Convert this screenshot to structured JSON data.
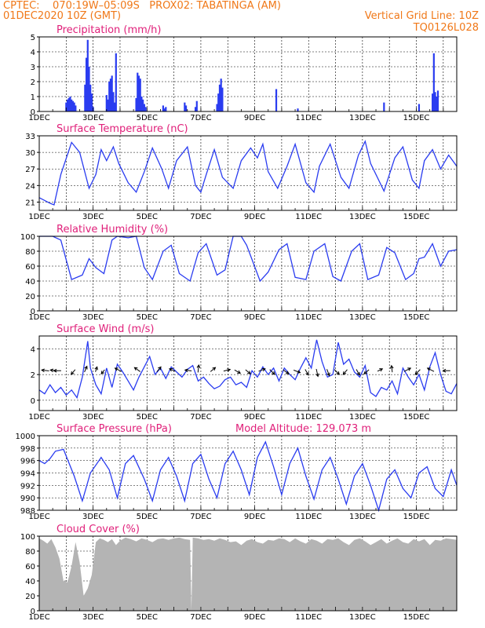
{
  "header": {
    "line1_left": "CPTEC:    070:19W–05:09S   PROX02: TABATINGA (AM)",
    "line2_left": "01DEC2020 10Z (GMT)",
    "line2_right": "Vertical Grid Line: 10Z",
    "line3_right": "TQ0126L028"
  },
  "colors": {
    "header": "#f07818",
    "title": "#e0207a",
    "series": "#2a3cf0",
    "cloud": "#b4b4b4",
    "wind_arrow": "#000000"
  },
  "chart_data": [
    {
      "id": "precip",
      "type": "bar",
      "title": "Precipitation (mm/h)",
      "ylim": [
        0,
        5
      ],
      "yticks": [
        "0",
        "1",
        "2",
        "3",
        "4",
        "5"
      ],
      "xlim": [
        1,
        16.5
      ],
      "xtick_labels": [
        "1DEC",
        "3DEC",
        "5DEC",
        "7DEC",
        "9DEC",
        "11DEC",
        "13DEC",
        "15DEC"
      ],
      "x": [
        2.0,
        2.05,
        2.1,
        2.15,
        2.2,
        2.25,
        2.3,
        2.35,
        2.7,
        2.75,
        2.8,
        2.85,
        2.9,
        2.95,
        3.0,
        3.5,
        3.55,
        3.6,
        3.65,
        3.7,
        3.75,
        3.8,
        3.85,
        4.6,
        4.65,
        4.7,
        4.75,
        4.8,
        4.85,
        4.9,
        4.95,
        5.6,
        5.65,
        5.7,
        6.4,
        6.45,
        6.8,
        6.85,
        7.6,
        7.65,
        7.7,
        7.75,
        7.8,
        9.8,
        10.6,
        13.8,
        15.1,
        15.6,
        15.65,
        15.7,
        15.75,
        15.8
      ],
      "values": [
        0.6,
        0.8,
        0.9,
        1.0,
        0.8,
        0.7,
        0.6,
        0.4,
        1.8,
        3.6,
        4.8,
        3.0,
        1.8,
        1.2,
        0.3,
        1.1,
        0.8,
        2.0,
        2.2,
        2.4,
        1.3,
        0.6,
        3.9,
        0.9,
        2.6,
        2.4,
        2.2,
        1.0,
        0.8,
        0.5,
        0.3,
        0.4,
        0.2,
        0.3,
        0.6,
        0.4,
        0.3,
        0.7,
        0.5,
        1.2,
        1.8,
        2.2,
        1.6,
        1.5,
        0.2,
        0.6,
        0.5,
        1.2,
        3.9,
        1.3,
        1.0,
        1.4
      ]
    },
    {
      "id": "temp",
      "type": "line",
      "title": "Surface Temperature (nC)",
      "ylim": [
        19.5,
        33
      ],
      "yticks": [
        "21",
        "24",
        "27",
        "30",
        "33"
      ],
      "xlim": [
        1,
        16.5
      ],
      "xtick_labels": [
        "1DEC",
        "3DEC",
        "5DEC",
        "7DEC",
        "9DEC",
        "11DEC",
        "13DEC",
        "15DEC"
      ],
      "x": [
        1.0,
        1.4,
        1.55,
        1.8,
        2.2,
        2.5,
        2.85,
        3.1,
        3.3,
        3.5,
        3.75,
        3.95,
        4.3,
        4.6,
        4.9,
        5.2,
        5.55,
        5.8,
        6.1,
        6.5,
        6.8,
        7.0,
        7.2,
        7.5,
        7.8,
        8.2,
        8.5,
        8.85,
        9.1,
        9.3,
        9.5,
        9.85,
        10.2,
        10.5,
        10.9,
        11.2,
        11.4,
        11.8,
        12.2,
        12.5,
        12.85,
        13.1,
        13.3,
        13.8,
        14.2,
        14.5,
        14.85,
        15.1,
        15.3,
        15.6,
        15.9,
        16.2,
        16.5
      ],
      "y": [
        21.8,
        20.8,
        20.5,
        26.0,
        31.8,
        30.0,
        23.5,
        26.0,
        30.5,
        28.5,
        31.0,
        28.0,
        24.5,
        22.8,
        26.5,
        30.8,
        27.0,
        23.5,
        28.5,
        31.0,
        24.0,
        22.8,
        26.0,
        30.5,
        25.5,
        23.5,
        28.5,
        30.8,
        29.0,
        31.5,
        26.5,
        23.5,
        27.5,
        31.5,
        24.5,
        22.8,
        27.5,
        31.5,
        25.5,
        23.5,
        29.5,
        32.0,
        28.0,
        23.0,
        29.0,
        31.0,
        25.0,
        23.5,
        28.5,
        30.5,
        27.0,
        29.5,
        27.5
      ]
    },
    {
      "id": "rh",
      "type": "line",
      "title": "Relative Humidity (%)",
      "ylim": [
        0,
        100
      ],
      "yticks": [
        "0",
        "20",
        "40",
        "60",
        "80",
        "100"
      ],
      "xlim": [
        1,
        16.5
      ],
      "xtick_labels": [
        "1DEC",
        "3DEC",
        "5DEC",
        "7DEC",
        "9DEC",
        "11DEC",
        "13DEC",
        "15DEC"
      ],
      "x": [
        1.0,
        1.5,
        1.8,
        2.2,
        2.6,
        2.85,
        3.1,
        3.4,
        3.7,
        3.9,
        4.3,
        4.6,
        4.9,
        5.2,
        5.6,
        5.9,
        6.2,
        6.6,
        6.9,
        7.2,
        7.6,
        7.9,
        8.2,
        8.5,
        8.7,
        9.2,
        9.5,
        9.9,
        10.2,
        10.5,
        10.9,
        11.2,
        11.6,
        11.9,
        12.2,
        12.6,
        12.9,
        13.2,
        13.6,
        13.9,
        14.2,
        14.6,
        14.9,
        15.1,
        15.3,
        15.6,
        15.9,
        16.2,
        16.5
      ],
      "y": [
        100,
        100,
        95,
        42,
        48,
        70,
        58,
        50,
        95,
        100,
        98,
        100,
        58,
        42,
        80,
        88,
        50,
        40,
        78,
        90,
        48,
        55,
        100,
        100,
        88,
        40,
        52,
        82,
        90,
        45,
        42,
        80,
        90,
        46,
        40,
        80,
        90,
        42,
        48,
        85,
        78,
        42,
        50,
        70,
        72,
        90,
        60,
        80,
        82
      ]
    },
    {
      "id": "wind",
      "type": "line",
      "title": "Surface Wind (m/s)",
      "ylim": [
        -0.8,
        5
      ],
      "yticks": [
        "0",
        "2",
        "4"
      ],
      "xlim": [
        1,
        16.5
      ],
      "xtick_labels": [
        "1DEC",
        "3DEC",
        "5DEC",
        "7DEC",
        "9DEC",
        "11DEC",
        "13DEC",
        "15DEC"
      ],
      "x": [
        1.0,
        1.2,
        1.4,
        1.6,
        1.8,
        2.0,
        2.2,
        2.4,
        2.6,
        2.8,
        2.9,
        3.1,
        3.3,
        3.5,
        3.7,
        3.9,
        4.1,
        4.3,
        4.5,
        4.7,
        4.9,
        5.1,
        5.3,
        5.5,
        5.7,
        5.9,
        6.1,
        6.3,
        6.5,
        6.7,
        6.9,
        7.1,
        7.3,
        7.5,
        7.7,
        7.9,
        8.1,
        8.3,
        8.5,
        8.7,
        8.9,
        9.1,
        9.3,
        9.5,
        9.7,
        9.9,
        10.1,
        10.3,
        10.5,
        10.7,
        10.9,
        11.1,
        11.3,
        11.5,
        11.7,
        11.9,
        12.1,
        12.3,
        12.5,
        12.7,
        12.9,
        13.1,
        13.3,
        13.5,
        13.7,
        13.9,
        14.1,
        14.3,
        14.5,
        14.7,
        14.9,
        15.1,
        15.3,
        15.5,
        15.7,
        15.9,
        16.1,
        16.3,
        16.5
      ],
      "y": [
        0.8,
        0.5,
        1.2,
        0.6,
        1.0,
        0.4,
        0.8,
        0.2,
        1.8,
        4.6,
        2.5,
        1.2,
        0.5,
        2.5,
        1.0,
        2.8,
        2.2,
        1.5,
        0.8,
        1.8,
        2.6,
        3.4,
        2.0,
        2.5,
        1.7,
        2.6,
        2.2,
        1.8,
        2.4,
        2.7,
        1.5,
        1.8,
        1.3,
        0.9,
        1.1,
        1.6,
        1.8,
        1.2,
        1.4,
        1.0,
        2.3,
        1.8,
        2.6,
        2.0,
        2.5,
        1.5,
        2.5,
        2.0,
        1.6,
        2.5,
        3.3,
        2.5,
        4.7,
        3.0,
        1.8,
        2.0,
        4.5,
        2.8,
        3.2,
        2.2,
        1.8,
        2.7,
        0.6,
        0.3,
        1.0,
        0.8,
        1.5,
        0.5,
        2.5,
        1.8,
        1.2,
        2.0,
        0.8,
        2.6,
        3.7,
        2.0,
        0.7,
        0.5,
        1.3
      ],
      "arrows": [
        {
          "x": 1.3,
          "u": -0.9,
          "v": 0.1
        },
        {
          "x": 1.6,
          "u": -0.8,
          "v": 0.1
        },
        {
          "x": 1.75,
          "u": -0.9,
          "v": 0.0
        },
        {
          "x": 2.3,
          "u": -0.5,
          "v": -0.6
        },
        {
          "x": 2.7,
          "u": 0.3,
          "v": 0.7
        },
        {
          "x": 3.1,
          "u": 0.2,
          "v": 0.6
        },
        {
          "x": 3.4,
          "u": -0.4,
          "v": -0.5
        },
        {
          "x": 4.0,
          "u": -0.8,
          "v": 0.4
        },
        {
          "x": 4.7,
          "u": -0.7,
          "v": 0.5
        },
        {
          "x": 5.4,
          "u": 0.5,
          "v": 0.6
        },
        {
          "x": 6.0,
          "u": -0.7,
          "v": 0.3
        },
        {
          "x": 6.6,
          "u": -0.8,
          "v": 0.1
        },
        {
          "x": 6.9,
          "u": 0.1,
          "v": 0.9
        },
        {
          "x": 7.4,
          "u": 0.6,
          "v": 0.5
        },
        {
          "x": 7.9,
          "u": 0.8,
          "v": 0.2
        },
        {
          "x": 8.3,
          "u": 0.7,
          "v": -0.4
        },
        {
          "x": 8.7,
          "u": 0.6,
          "v": -0.5
        },
        {
          "x": 9.2,
          "u": 0.8,
          "v": 0.3
        },
        {
          "x": 9.6,
          "u": 0.6,
          "v": -0.6
        },
        {
          "x": 10.1,
          "u": 0.7,
          "v": -0.5
        },
        {
          "x": 10.5,
          "u": 0.8,
          "v": -0.3
        },
        {
          "x": 10.9,
          "u": 0.4,
          "v": -0.7
        },
        {
          "x": 11.3,
          "u": 0.2,
          "v": -0.9
        },
        {
          "x": 11.7,
          "u": 0.3,
          "v": -0.8
        },
        {
          "x": 12.0,
          "u": 0.6,
          "v": -0.6
        },
        {
          "x": 12.4,
          "u": -0.5,
          "v": -0.6
        },
        {
          "x": 12.8,
          "u": 0.4,
          "v": -0.7
        },
        {
          "x": 13.2,
          "u": -0.6,
          "v": -0.5
        },
        {
          "x": 13.6,
          "u": 0.6,
          "v": 0.3
        },
        {
          "x": 14.1,
          "u": -0.1,
          "v": 0.8
        },
        {
          "x": 14.6,
          "u": 0.8,
          "v": 0.4
        },
        {
          "x": 15.1,
          "u": -0.6,
          "v": -0.6
        },
        {
          "x": 15.6,
          "u": -0.8,
          "v": 0.4
        },
        {
          "x": 16.2,
          "u": -0.9,
          "v": 0.0
        }
      ]
    },
    {
      "id": "pres",
      "type": "line",
      "title": "Surface Pressure (hPa)",
      "subtitle": "Model Altitude: 129.073  m",
      "ylim": [
        988,
        1000
      ],
      "yticks": [
        "988",
        "990",
        "992",
        "994",
        "996",
        "998",
        "1000"
      ],
      "xlim": [
        1,
        16.5
      ],
      "xtick_labels": [
        "1DEC",
        "3DEC",
        "5DEC",
        "7DEC",
        "9DEC",
        "11DEC",
        "13DEC",
        "15DEC"
      ],
      "x": [
        1.0,
        1.2,
        1.4,
        1.6,
        1.9,
        2.3,
        2.6,
        2.9,
        3.3,
        3.6,
        3.9,
        4.2,
        4.5,
        4.9,
        5.2,
        5.5,
        5.8,
        6.1,
        6.4,
        6.7,
        7.0,
        7.3,
        7.6,
        7.9,
        8.2,
        8.5,
        8.8,
        9.1,
        9.4,
        9.7,
        10.0,
        10.3,
        10.6,
        10.9,
        11.2,
        11.5,
        11.8,
        12.1,
        12.4,
        12.7,
        13.0,
        13.3,
        13.6,
        13.9,
        14.2,
        14.5,
        14.8,
        15.1,
        15.4,
        15.7,
        16.0,
        16.3,
        16.5
      ],
      "y": [
        996,
        995.5,
        996.3,
        997.5,
        997.8,
        993.5,
        989.5,
        994.0,
        996.5,
        994.5,
        990.0,
        995.5,
        996.8,
        993.0,
        989.5,
        994.5,
        996.5,
        993.5,
        989.5,
        995.5,
        997.0,
        993.0,
        990.0,
        995.5,
        997.5,
        994.5,
        990.5,
        996.5,
        999.0,
        995.0,
        990.5,
        995.5,
        998.0,
        993.5,
        989.8,
        994.5,
        996.5,
        993.0,
        989.0,
        993.5,
        995.5,
        992.0,
        988.0,
        993.0,
        994.5,
        991.5,
        990.0,
        994.0,
        995.0,
        991.5,
        990.2,
        994.5,
        992.0
      ]
    },
    {
      "id": "cloud",
      "type": "area",
      "title": "Cloud Cover (%)",
      "ylim": [
        0,
        100
      ],
      "yticks": [
        "0",
        "20",
        "40",
        "60",
        "80",
        "100"
      ],
      "xlim": [
        1,
        16.5
      ],
      "xtick_labels": [
        "1DEC",
        "3DEC",
        "5DEC",
        "7DEC",
        "9DEC",
        "11DEC",
        "13DEC",
        "15DEC"
      ],
      "x": [
        1.0,
        1.15,
        1.3,
        1.45,
        1.6,
        1.75,
        1.9,
        2.05,
        2.2,
        2.35,
        2.5,
        2.65,
        2.8,
        2.95,
        3.1,
        3.25,
        3.4,
        3.55,
        3.7,
        3.85,
        4.0,
        4.2,
        4.4,
        4.6,
        4.8,
        5.0,
        5.2,
        5.4,
        5.6,
        5.8,
        6.0,
        6.2,
        6.4,
        6.6,
        6.65,
        6.7,
        6.9,
        7.1,
        7.3,
        7.5,
        7.7,
        7.9,
        8.1,
        8.3,
        8.5,
        8.7,
        8.9,
        9.1,
        9.3,
        9.5,
        9.7,
        9.9,
        10.1,
        10.3,
        10.5,
        10.7,
        10.9,
        11.1,
        11.3,
        11.5,
        11.7,
        11.9,
        12.1,
        12.3,
        12.5,
        12.7,
        12.9,
        13.1,
        13.3,
        13.5,
        13.7,
        13.9,
        14.1,
        14.3,
        14.5,
        14.7,
        14.9,
        15.1,
        15.3,
        15.5,
        15.7,
        15.9,
        16.1,
        16.3,
        16.5
      ],
      "y": [
        97,
        94,
        90,
        96,
        85,
        70,
        40,
        38,
        60,
        92,
        65,
        20,
        30,
        48,
        92,
        97,
        95,
        92,
        96,
        88,
        94,
        98,
        96,
        93,
        97,
        95,
        92,
        96,
        97,
        95,
        97,
        98,
        96,
        95,
        0,
        98,
        97,
        95,
        96,
        94,
        97,
        95,
        92,
        93,
        88,
        94,
        96,
        92,
        90,
        95,
        94,
        97,
        96,
        92,
        97,
        93,
        90,
        96,
        94,
        90,
        96,
        95,
        97,
        92,
        88,
        95,
        97,
        93,
        88,
        92,
        96,
        90,
        94,
        97,
        92,
        90,
        96,
        93,
        96,
        88,
        95,
        94,
        97,
        96,
        95
      ]
    }
  ]
}
